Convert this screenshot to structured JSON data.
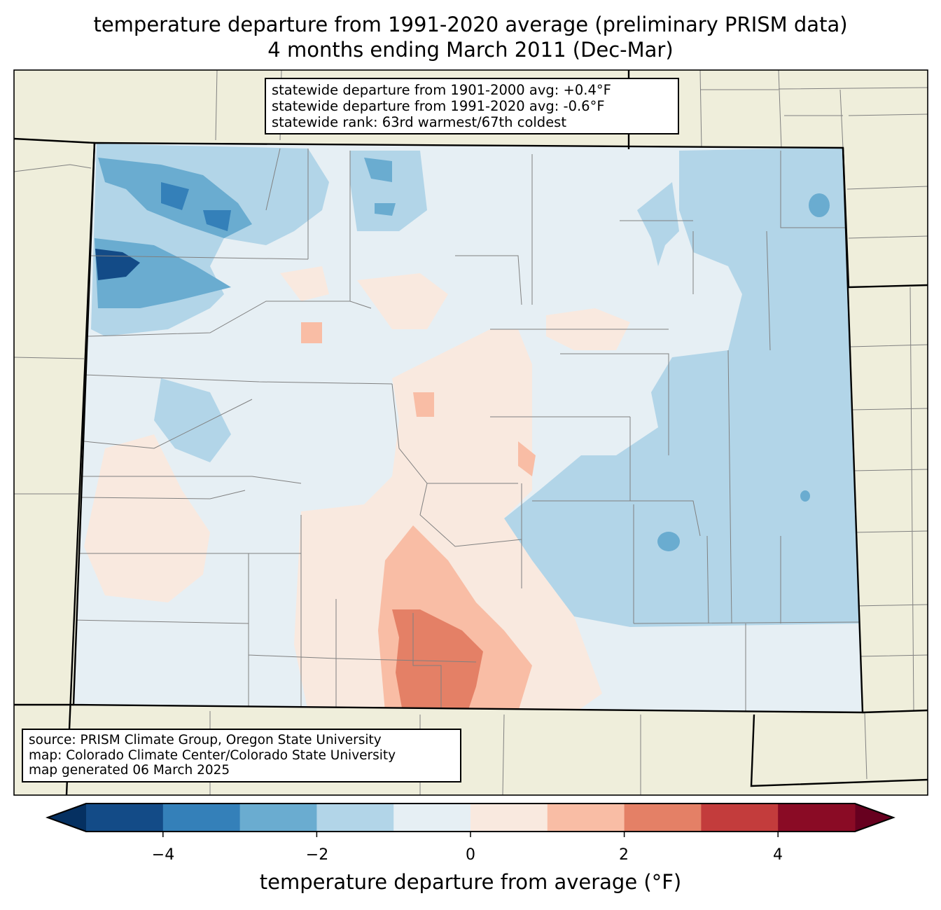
{
  "title": {
    "line1": "temperature departure from 1991-2020 average (preliminary PRISM data)",
    "line2": "4 months ending March 2011 (Dec-Mar)"
  },
  "info_box": {
    "line1": "statewide departure from 1901-2000 avg: +0.4°F",
    "line2": "statewide departure from 1991-2020 avg: -0.6°F",
    "line3": "statewide rank: 63rd warmest/67th coldest"
  },
  "source_box": {
    "line1": "source: PRISM Climate Group, Oregon State University",
    "line2": "map: Colorado Climate Center/Colorado State University",
    "line3": "map generated 06 March 2025"
  },
  "colorbar": {
    "label": "temperature departure from average (°F)",
    "levels": [
      -5,
      -4,
      -3,
      -2,
      -1,
      0,
      1,
      2,
      3,
      4,
      5
    ],
    "ticks": [
      "−4",
      "−2",
      "0",
      "2",
      "4"
    ],
    "colors": [
      "#134b87",
      "#3480b9",
      "#6aacd0",
      "#b2d5e8",
      "#e6eff4",
      "#f9e9df",
      "#f9bda5",
      "#e48066",
      "#c33c3c",
      "#8a0b25"
    ],
    "under_color": "#053061",
    "over_color": "#67001f"
  },
  "map": {
    "land_color": "#efeedb",
    "border_color": "#000000",
    "county_color": "#808080"
  }
}
